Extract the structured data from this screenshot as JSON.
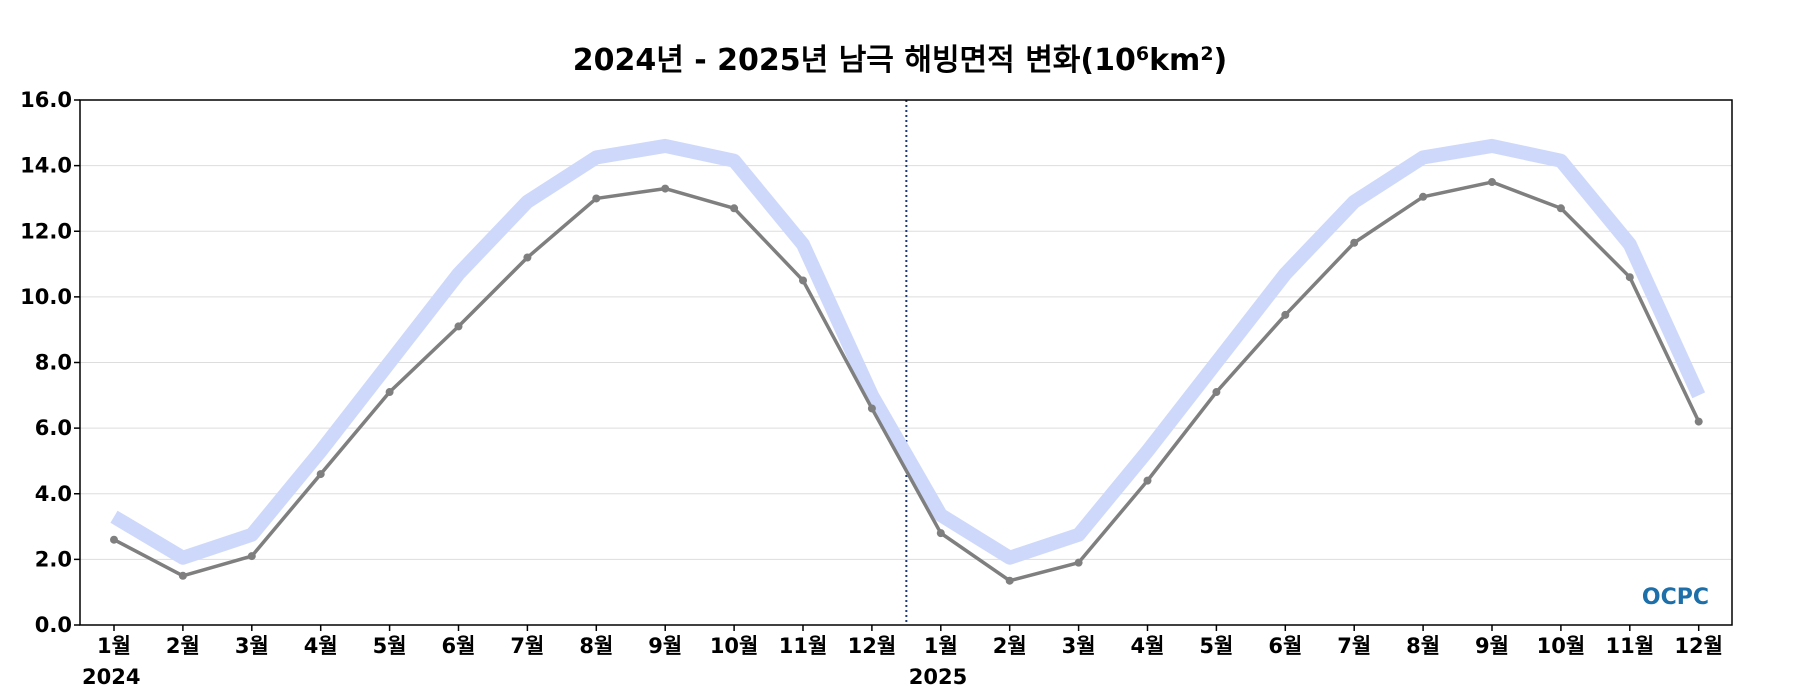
{
  "chart_data": {
    "type": "line",
    "title_main": "2024년 - 2025년 남극 해빙면적 변화(10",
    "title_sup1": "6",
    "title_mid": "km",
    "title_sup2": "2",
    "title_end": ")",
    "ylim": [
      0,
      16
    ],
    "yticks": [
      "0.0",
      "2.0",
      "4.0",
      "6.0",
      "8.0",
      "10.0",
      "12.0",
      "14.0",
      "16.0"
    ],
    "grid": true,
    "categories": [
      "1월",
      "2월",
      "3월",
      "4월",
      "5월",
      "6월",
      "7월",
      "8월",
      "9월",
      "10월",
      "11월",
      "12월",
      "1월",
      "2월",
      "3월",
      "4월",
      "5월",
      "6월",
      "7월",
      "8월",
      "9월",
      "10월",
      "11월",
      "12월"
    ],
    "year_labels": [
      {
        "label": "2024",
        "index": 0
      },
      {
        "label": "2025",
        "index": 12
      }
    ],
    "divider_between": [
      11,
      12
    ],
    "series": [
      {
        "values": [
          3.3,
          2.05,
          2.75,
          5.3,
          8.0,
          10.7,
          12.9,
          14.25,
          14.6,
          14.15,
          11.6,
          7.0,
          3.35,
          2.05,
          2.75,
          5.3,
          8.0,
          10.7,
          12.9,
          14.25,
          14.6,
          14.15,
          11.6,
          7.0
        ],
        "color": "#cdd8fb"
      },
      {
        "values": [
          2.6,
          1.5,
          2.1,
          4.6,
          7.1,
          9.1,
          11.2,
          13.0,
          13.3,
          12.7,
          10.5,
          6.6,
          2.8,
          1.35,
          1.9,
          4.4,
          7.1,
          9.45,
          11.65,
          13.05,
          13.5,
          12.7,
          10.6,
          6.2
        ],
        "color": "#7f7f7f"
      }
    ],
    "logo_text": "OCPC",
    "colors": {
      "divider": "#1f3a7a",
      "grid": "#dddddd",
      "logo": "#1c6fa8"
    }
  }
}
